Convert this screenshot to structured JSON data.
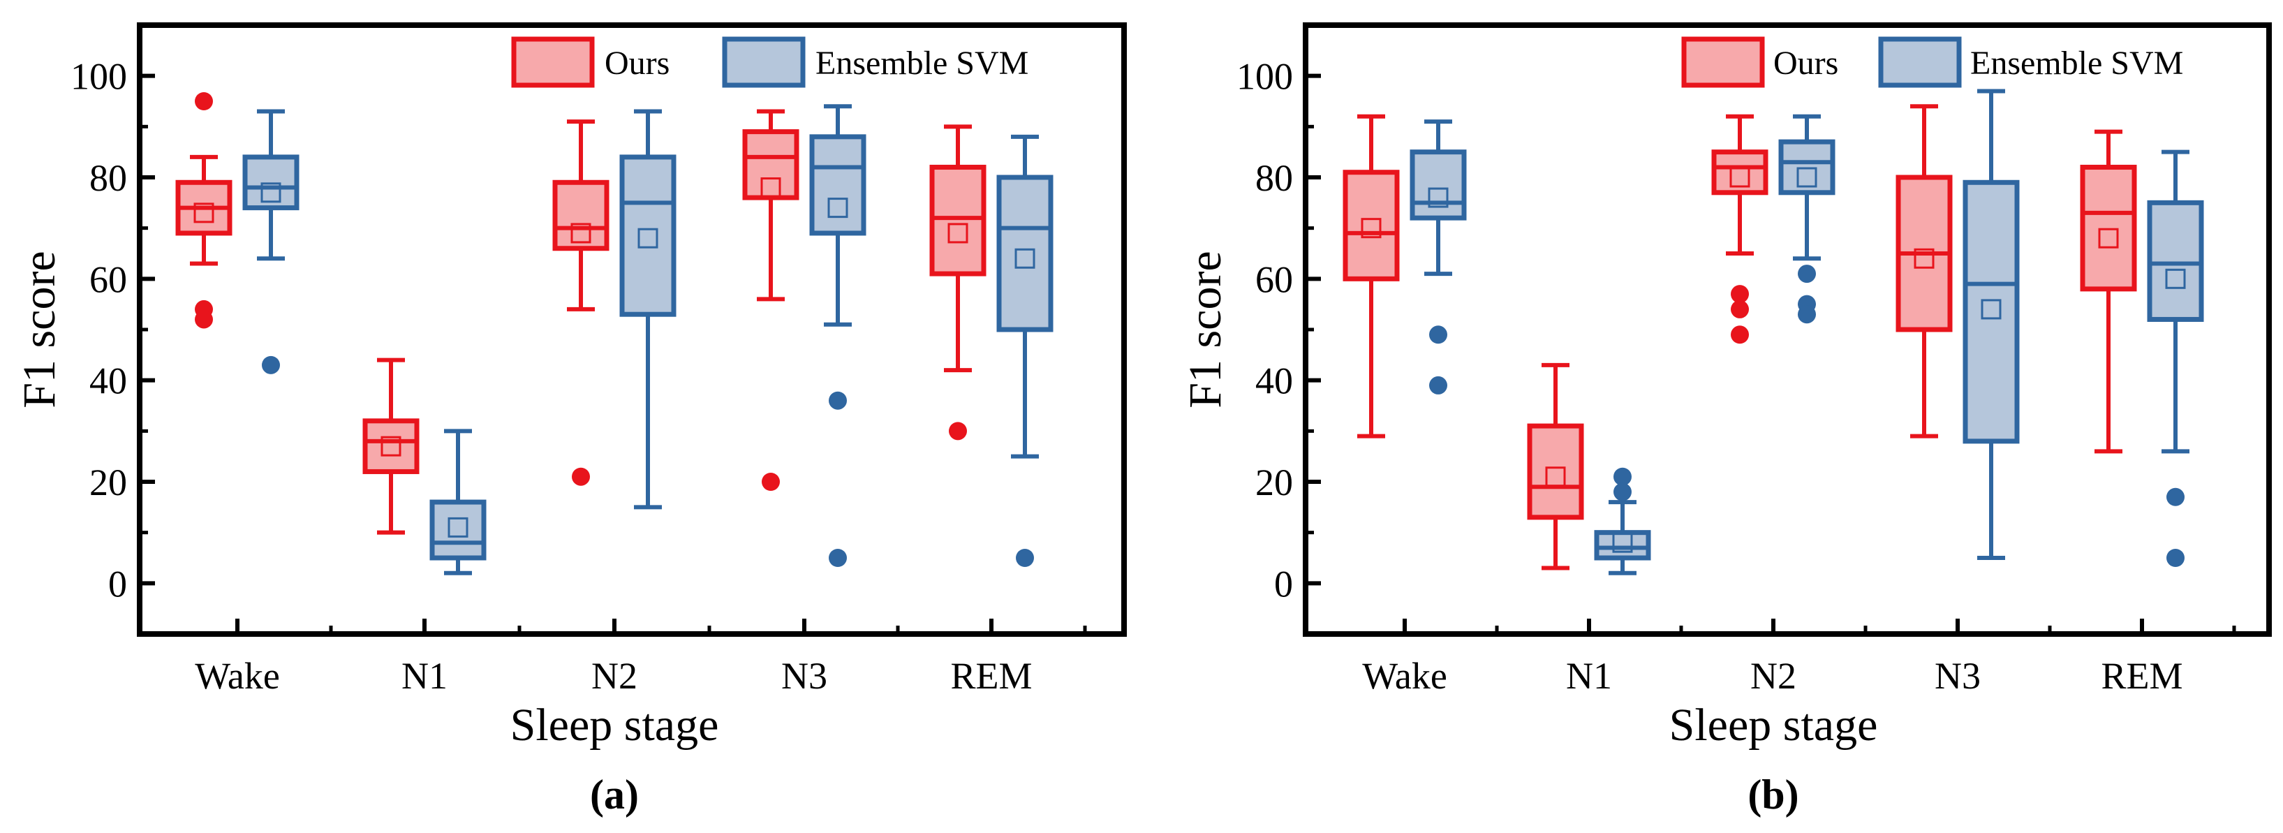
{
  "colors": {
    "ours_stroke": "#e8141c",
    "ours_fill": "#f7a9ab",
    "svm_stroke": "#2f66a0",
    "svm_fill": "#b5c6db"
  },
  "chart_data": [
    {
      "type": "box",
      "panel_label": "(a)",
      "xlabel": "Sleep stage",
      "ylabel": "F1 score",
      "ylim": [
        -10,
        110
      ],
      "yticks": [
        0,
        20,
        40,
        60,
        80,
        100
      ],
      "categories": [
        "Wake",
        "N1",
        "N2",
        "N3",
        "REM"
      ],
      "legend": [
        "Ours",
        "Ensemble SVM"
      ],
      "legend_position": "top-right",
      "series": [
        {
          "name": "Ours",
          "boxes": [
            {
              "min": 63,
              "q1": 69,
              "median": 74,
              "q3": 79,
              "max": 84,
              "mean": 73,
              "outliers": [
                95,
                54,
                52
              ]
            },
            {
              "min": 10,
              "q1": 22,
              "median": 28,
              "q3": 32,
              "max": 44,
              "mean": 27,
              "outliers": []
            },
            {
              "min": 54,
              "q1": 66,
              "median": 70,
              "q3": 79,
              "max": 91,
              "mean": 69,
              "outliers": [
                21
              ]
            },
            {
              "min": 56,
              "q1": 76,
              "median": 84,
              "q3": 89,
              "max": 93,
              "mean": 78,
              "outliers": [
                20
              ]
            },
            {
              "min": 42,
              "q1": 61,
              "median": 72,
              "q3": 82,
              "max": 90,
              "mean": 69,
              "outliers": [
                30
              ]
            }
          ]
        },
        {
          "name": "Ensemble SVM",
          "boxes": [
            {
              "min": 64,
              "q1": 74,
              "median": 78,
              "q3": 84,
              "max": 93,
              "mean": 77,
              "outliers": [
                43
              ]
            },
            {
              "min": 2,
              "q1": 5,
              "median": 8,
              "q3": 16,
              "max": 30,
              "mean": 11,
              "outliers": []
            },
            {
              "min": 15,
              "q1": 53,
              "median": 75,
              "q3": 84,
              "max": 93,
              "mean": 68,
              "outliers": []
            },
            {
              "min": 51,
              "q1": 69,
              "median": 82,
              "q3": 88,
              "max": 94,
              "mean": 74,
              "outliers": [
                36,
                5
              ]
            },
            {
              "min": 25,
              "q1": 50,
              "median": 70,
              "q3": 80,
              "max": 88,
              "mean": 64,
              "outliers": [
                5
              ]
            }
          ]
        }
      ]
    },
    {
      "type": "box",
      "panel_label": "(b)",
      "xlabel": "Sleep stage",
      "ylabel": "F1 score",
      "ylim": [
        -10,
        110
      ],
      "yticks": [
        0,
        20,
        40,
        60,
        80,
        100
      ],
      "categories": [
        "Wake",
        "N1",
        "N2",
        "N3",
        "REM"
      ],
      "legend": [
        "Ours",
        "Ensemble SVM"
      ],
      "legend_position": "top-right",
      "series": [
        {
          "name": "Ours",
          "boxes": [
            {
              "min": 29,
              "q1": 60,
              "median": 69,
              "q3": 81,
              "max": 92,
              "mean": 70,
              "outliers": []
            },
            {
              "min": 3,
              "q1": 13,
              "median": 19,
              "q3": 31,
              "max": 43,
              "mean": 21,
              "outliers": []
            },
            {
              "min": 65,
              "q1": 77,
              "median": 82,
              "q3": 85,
              "max": 92,
              "mean": 80,
              "outliers": [
                57,
                54,
                49
              ]
            },
            {
              "min": 29,
              "q1": 50,
              "median": 65,
              "q3": 80,
              "max": 94,
              "mean": 64,
              "outliers": []
            },
            {
              "min": 26,
              "q1": 58,
              "median": 73,
              "q3": 82,
              "max": 89,
              "mean": 68,
              "outliers": []
            }
          ]
        },
        {
          "name": "Ensemble SVM",
          "boxes": [
            {
              "min": 61,
              "q1": 72,
              "median": 75,
              "q3": 85,
              "max": 91,
              "mean": 76,
              "outliers": [
                49,
                39
              ]
            },
            {
              "min": 2,
              "q1": 5,
              "median": 7,
              "q3": 10,
              "max": 16,
              "mean": 8,
              "outliers": [
                21,
                18
              ]
            },
            {
              "min": 64,
              "q1": 77,
              "median": 83,
              "q3": 87,
              "max": 92,
              "mean": 80,
              "outliers": [
                61,
                55,
                53
              ]
            },
            {
              "min": 5,
              "q1": 28,
              "median": 59,
              "q3": 79,
              "max": 97,
              "mean": 54,
              "outliers": []
            },
            {
              "min": 26,
              "q1": 52,
              "median": 63,
              "q3": 75,
              "max": 85,
              "mean": 60,
              "outliers": [
                17,
                5
              ]
            }
          ]
        }
      ]
    }
  ]
}
